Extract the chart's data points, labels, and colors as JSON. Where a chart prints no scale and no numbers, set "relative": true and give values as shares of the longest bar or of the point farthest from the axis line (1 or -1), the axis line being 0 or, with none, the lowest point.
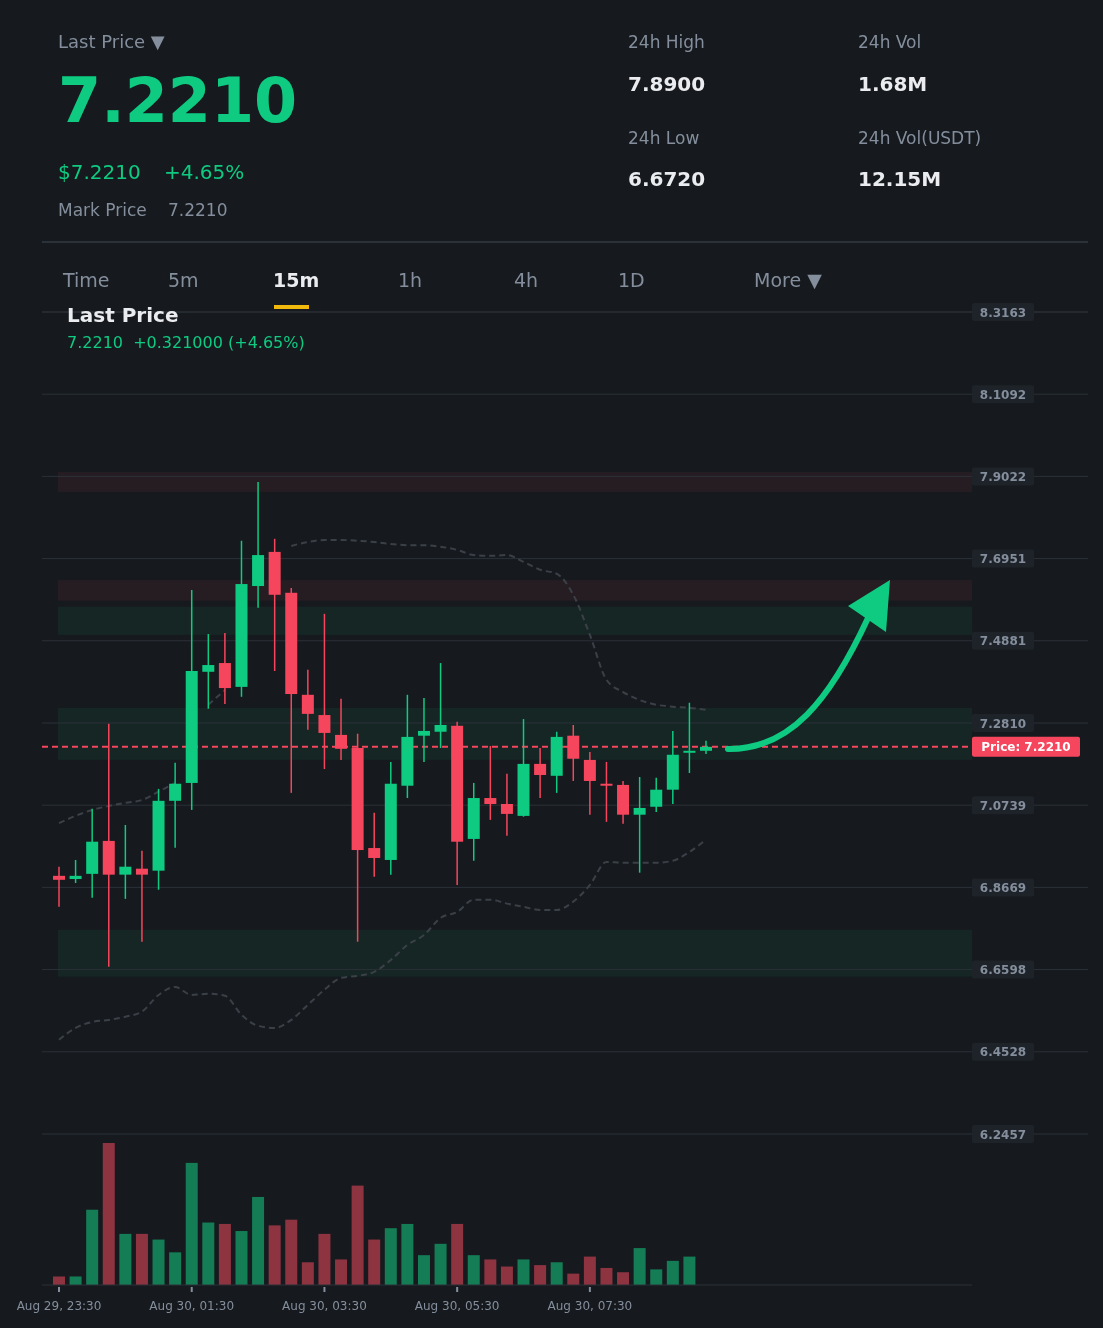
{
  "chart_data": [
    {
      "type": "other",
      "annotations": [
        "Last Price ▼",
        "7.2210",
        "$7.2210",
        "+4.65%",
        "Mark Price",
        "7.2210",
        "24h High",
        "7.8900",
        "24h Low",
        "6.6720",
        "24h Vol",
        "1.68M",
        "24h Vol(USDT)",
        "12.15M",
        "Time",
        "5m",
        "15m",
        "1h",
        "4h",
        "1D",
        "More ▼"
      ]
    },
    {
      "type": "candlestick",
      "title": "Last Price",
      "subtitle": "7.2210  +0.321000 (+4.65%)",
      "tick_labels": "y",
      "categories": [
        null,
        null,
        null,
        null,
        null,
        null,
        null,
        null,
        null,
        null,
        null,
        null,
        null,
        null,
        null,
        null,
        null,
        null,
        null,
        null,
        null,
        null,
        null,
        null,
        null,
        null,
        null,
        null,
        null,
        null,
        null,
        null,
        null,
        null,
        null,
        null,
        null,
        null,
        null,
        null
      ],
      "ohlc": [
        [
          6.896,
          6.919,
          6.818,
          6.886
        ],
        [
          6.888,
          6.936,
          6.878,
          6.896
        ],
        [
          6.901,
          7.065,
          6.841,
          6.982
        ],
        [
          6.984,
          7.279,
          6.667,
          6.899
        ],
        [
          6.899,
          7.024,
          6.838,
          6.919
        ],
        [
          6.914,
          6.959,
          6.73,
          6.899
        ],
        [
          6.909,
          7.115,
          6.861,
          7.085
        ],
        [
          7.085,
          7.181,
          6.967,
          7.128
        ],
        [
          7.13,
          7.616,
          7.062,
          7.412
        ],
        [
          7.41,
          7.505,
          7.317,
          7.427
        ],
        [
          7.432,
          7.508,
          7.329,
          7.369
        ],
        [
          7.372,
          7.74,
          7.347,
          7.631
        ],
        [
          7.626,
          7.888,
          7.571,
          7.704
        ],
        [
          7.712,
          7.745,
          7.412,
          7.604
        ],
        [
          7.609,
          7.621,
          7.105,
          7.354
        ],
        [
          7.352,
          7.415,
          7.264,
          7.304
        ],
        [
          7.301,
          7.556,
          7.165,
          7.256
        ],
        [
          7.251,
          7.342,
          7.188,
          7.216
        ],
        [
          7.218,
          7.254,
          6.73,
          6.961
        ],
        [
          6.966,
          7.055,
          6.894,
          6.941
        ],
        [
          6.936,
          7.183,
          6.899,
          7.128
        ],
        [
          7.123,
          7.352,
          7.092,
          7.246
        ],
        [
          7.249,
          7.344,
          7.183,
          7.261
        ],
        [
          7.259,
          7.432,
          7.218,
          7.276
        ],
        [
          7.274,
          7.284,
          6.873,
          6.982
        ],
        [
          6.989,
          7.13,
          6.934,
          7.092
        ],
        [
          7.092,
          7.223,
          7.037,
          7.077
        ],
        [
          7.077,
          7.153,
          6.997,
          7.052
        ],
        [
          7.047,
          7.291,
          7.045,
          7.178
        ],
        [
          7.178,
          7.218,
          7.092,
          7.15
        ],
        [
          7.148,
          7.259,
          7.105,
          7.246
        ],
        [
          7.249,
          7.276,
          7.135,
          7.191
        ],
        [
          7.188,
          7.208,
          7.05,
          7.135
        ],
        [
          7.128,
          7.183,
          7.032,
          7.123
        ],
        [
          7.125,
          7.135,
          7.027,
          7.05
        ],
        [
          7.05,
          7.145,
          6.904,
          7.067
        ],
        [
          7.07,
          7.143,
          7.057,
          7.113
        ],
        [
          7.113,
          7.261,
          7.077,
          7.201
        ],
        [
          7.206,
          7.332,
          7.155,
          7.211
        ],
        [
          7.211,
          7.236,
          7.203,
          7.221
        ]
      ],
      "colors": [
        "#f6465d",
        "#0ecb81",
        "#0ecb81",
        "#f6465d",
        "#0ecb81",
        "#f6465d",
        "#0ecb81",
        "#0ecb81",
        "#0ecb81",
        "#0ecb81",
        "#f6465d",
        "#0ecb81",
        "#0ecb81",
        "#f6465d",
        "#f6465d",
        "#f6465d",
        "#f6465d",
        "#f6465d",
        "#f6465d",
        "#f6465d",
        "#0ecb81",
        "#0ecb81",
        "#0ecb81",
        "#0ecb81",
        "#f6465d",
        "#0ecb81",
        "#f6465d",
        "#f6465d",
        "#0ecb81",
        "#f6465d",
        "#0ecb81",
        "#f6465d",
        "#f6465d",
        "#f6465d",
        "#f6465d",
        "#0ecb81",
        "#0ecb81",
        "#0ecb81",
        "#0ecb81",
        "#0ecb81"
      ],
      "series": [
        {
          "type": "line",
          "color": "#3b4048",
          "line_style": "dashed",
          "values": [
            7.029,
            7.047,
            7.062,
            7.072,
            7.08,
            7.087,
            7.108,
            7.13,
            null,
            7.327,
            7.364,
            null,
            null,
            null,
            7.727,
            7.737,
            7.742,
            7.742,
            7.74,
            7.737,
            7.732,
            7.729,
            7.729,
            7.725,
            7.717,
            7.704,
            7.702,
            7.704,
            7.687,
            7.667,
            7.657,
            7.604,
            7.503,
            7.39,
            7.359,
            7.339,
            7.327,
            7.322,
            7.319,
            7.314
          ]
        },
        {
          "type": "line",
          "color": "#3b4048",
          "line_style": "dashed",
          "values": [
            6.483,
            6.513,
            6.528,
            6.533,
            6.541,
            6.554,
            6.596,
            6.616,
            6.596,
            6.599,
            6.594,
            6.546,
            6.518,
            6.513,
            6.533,
            6.571,
            6.609,
            6.639,
            6.644,
            6.654,
            6.684,
            6.722,
            6.747,
            6.79,
            6.805,
            6.836,
            6.836,
            6.826,
            6.818,
            6.81,
            6.81,
            6.831,
            6.873,
            6.931,
            6.929,
            6.929,
            6.929,
            6.934,
            6.956,
            6.987
          ]
        }
      ],
      "ylim": [
        6.2457,
        8.3163
      ],
      "yticks": [
        6.2457,
        6.4528,
        6.6598,
        6.8669,
        7.0739,
        {
          "value": 7.281,
          "label": "7.2810"
        },
        7.4881,
        7.6951,
        7.9022,
        8.1092,
        8.3163
      ],
      "grid": "y",
      "ref_lines": [
        {
          "axis": "y",
          "value": 7.221,
          "label": "Price: 7.2210",
          "color": "#f6465d",
          "line_style": "dashed"
        }
      ],
      "bands": [
        {
          "axis": "y",
          "from": 7.863,
          "to": 7.913,
          "color": "#f6465d"
        },
        {
          "axis": "y",
          "from": 7.589,
          "to": 7.641,
          "color": "#f6465d"
        },
        {
          "axis": "y",
          "from": 7.503,
          "to": 7.574,
          "color": "#0ecb81"
        },
        {
          "axis": "y",
          "from": 7.188,
          "to": 7.319,
          "color": "#0ecb81"
        },
        {
          "axis": "y",
          "from": 6.642,
          "to": 6.76,
          "color": "#0ecb81"
        }
      ]
    },
    {
      "type": "bar",
      "relative": true,
      "categories": [
        "Aug 29, 23:30",
        null,
        null,
        null,
        null,
        null,
        null,
        null,
        "Aug 30, 01:30",
        null,
        null,
        null,
        null,
        null,
        null,
        null,
        "Aug 30, 03:30",
        null,
        null,
        null,
        null,
        null,
        null,
        null,
        "Aug 30, 05:30",
        null,
        null,
        null,
        null,
        null,
        null,
        null,
        "Aug 30, 07:30",
        null,
        null,
        null,
        null,
        null,
        null,
        null
      ],
      "values": [
        0.06,
        0.06,
        0.53,
        1,
        0.36,
        0.36,
        0.32,
        0.23,
        0.86,
        0.44,
        0.43,
        0.38,
        0.62,
        0.42,
        0.46,
        0.16,
        0.36,
        0.18,
        0.7,
        0.32,
        0.4,
        0.43,
        0.21,
        0.29,
        0.43,
        0.21,
        0.18,
        0.13,
        0.18,
        0.14,
        0.16,
        0.08,
        0.2,
        0.12,
        0.09,
        0.26,
        0.11,
        0.17,
        0.2,
        null
      ],
      "colors": [
        "#8e3340",
        "#147d55",
        "#147d55",
        "#8e3340",
        "#147d55",
        "#8e3340",
        "#147d55",
        "#147d55",
        "#147d55",
        "#147d55",
        "#8e3340",
        "#147d55",
        "#147d55",
        "#8e3340",
        "#8e3340",
        "#8e3340",
        "#8e3340",
        "#8e3340",
        "#8e3340",
        "#8e3340",
        "#147d55",
        "#147d55",
        "#147d55",
        "#147d55",
        "#8e3340",
        "#147d55",
        "#8e3340",
        "#8e3340",
        "#147d55",
        "#8e3340",
        "#147d55",
        "#8e3340",
        "#8e3340",
        "#8e3340",
        "#8e3340",
        "#147d55",
        "#147d55",
        "#147d55",
        "#147d55",
        null
      ]
    }
  ]
}
